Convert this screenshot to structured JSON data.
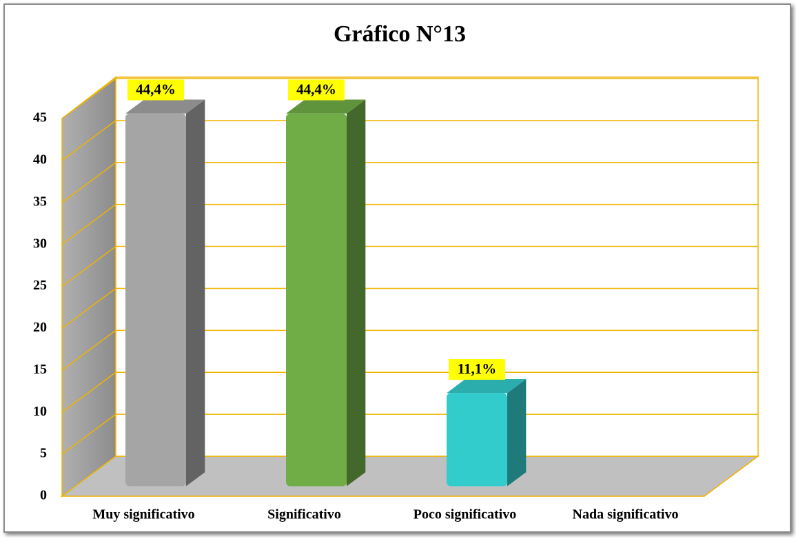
{
  "chart_data": {
    "type": "bar3d",
    "title": "Gráfico N°13",
    "categories": [
      "Muy significativo",
      "Significativo",
      "Poco significativo",
      "Nada significativo"
    ],
    "values": [
      44.4,
      44.4,
      11.1,
      0
    ],
    "value_labels": [
      "44,4%",
      "44,4%",
      "11,1%",
      null
    ],
    "colors": [
      "#a5a5a5",
      "#70ad47",
      "#33cccc",
      "#4472c4"
    ],
    "ylim": [
      0,
      45
    ],
    "yticks": [
      0,
      5,
      10,
      15,
      20,
      25,
      30,
      35,
      40,
      45
    ],
    "grid": true
  }
}
